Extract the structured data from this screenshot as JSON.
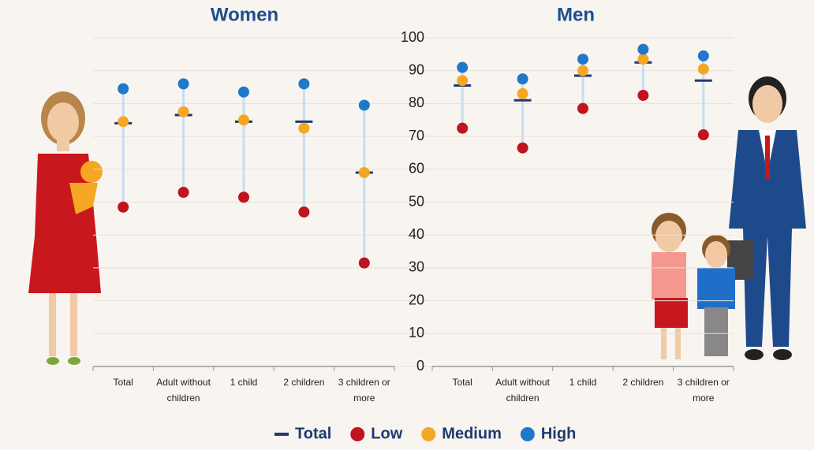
{
  "chart_data": {
    "type": "dot-range",
    "ylim": [
      0,
      100
    ],
    "yticks": [
      0,
      10,
      20,
      30,
      40,
      50,
      60,
      70,
      80,
      90,
      100
    ],
    "grid": true,
    "panels": [
      {
        "title": "Women",
        "categories": [
          "Total",
          "Adult without children",
          "1 child",
          "2 children",
          "3 children or more"
        ]
      },
      {
        "title": "Men",
        "categories": [
          "Total",
          "Adult without children",
          "1 child",
          "2 children",
          "3 children or more"
        ]
      }
    ],
    "series": [
      {
        "name": "Total",
        "color": "#1f3a6e",
        "values": [
          [
            74,
            76.5,
            74.5,
            74.5,
            59
          ],
          [
            85.5,
            81,
            88.5,
            92.5,
            87
          ]
        ]
      },
      {
        "name": "Low",
        "color": "#c0141e",
        "values": [
          [
            48.5,
            53,
            51.5,
            47,
            31.5
          ],
          [
            72.5,
            66.5,
            78.5,
            82.5,
            70.5
          ]
        ]
      },
      {
        "name": "Medium",
        "color": "#f5a623",
        "values": [
          [
            74.5,
            77.5,
            75,
            72.5,
            59
          ],
          [
            87,
            83,
            90,
            93.5,
            90.5
          ]
        ]
      },
      {
        "name": "High",
        "color": "#1f78c8",
        "values": [
          [
            84.5,
            86,
            83.5,
            86,
            79.5
          ],
          [
            91,
            87.5,
            93.5,
            96.5,
            94.5
          ]
        ]
      }
    ]
  }
}
